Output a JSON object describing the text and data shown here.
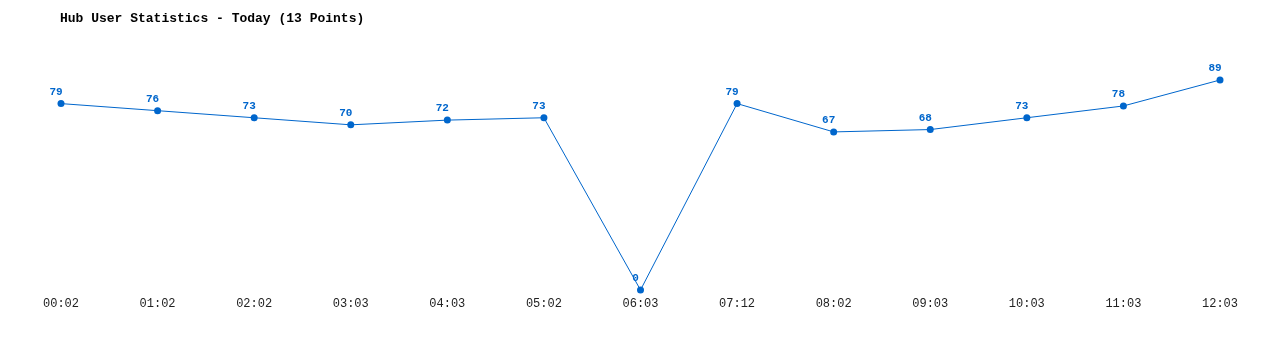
{
  "chart_data": {
    "type": "line",
    "title": "Hub User Statistics - Today (13 Points)",
    "categories": [
      "00:02",
      "01:02",
      "02:02",
      "03:03",
      "04:03",
      "05:02",
      "06:03",
      "07:12",
      "08:02",
      "09:03",
      "10:03",
      "11:03",
      "12:03"
    ],
    "series": [
      {
        "color": "#0066cc",
        "values": [
          79,
          76,
          73,
          70,
          72,
          73,
          0,
          79,
          67,
          68,
          73,
          78,
          89
        ]
      }
    ],
    "marker": "circle",
    "line_style": "solid",
    "data_labels": true
  }
}
